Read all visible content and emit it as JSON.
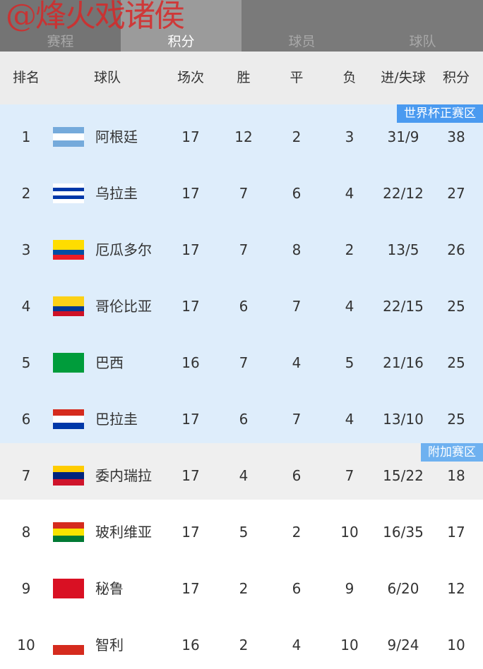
{
  "watermark": "@烽火戏诸侯",
  "tabs": [
    "赛程",
    "积分",
    "球员",
    "球队"
  ],
  "active_tab": "积分",
  "header": {
    "rank": "排名",
    "team": "球队",
    "played": "场次",
    "won": "胜",
    "drawn": "平",
    "lost": "负",
    "goals": "进/失球",
    "points": "积分"
  },
  "zones": {
    "world_cup": "世界杯正赛区",
    "playoff": "附加赛区"
  },
  "zone_colors": {
    "world_cup": "#deedfb",
    "playoff": "#efefef",
    "badge": "#4a9af0"
  },
  "rows": [
    {
      "rank": "1",
      "team": "阿根廷",
      "played": "17",
      "won": "12",
      "drawn": "2",
      "lost": "3",
      "goals": "31/9",
      "points": "38",
      "zone": "wc",
      "flag": [
        "#75aadb",
        "#ffffff",
        "#75aadb"
      ]
    },
    {
      "rank": "2",
      "team": "乌拉圭",
      "played": "17",
      "won": "7",
      "drawn": "6",
      "lost": "4",
      "goals": "22/12",
      "points": "27",
      "zone": "wc",
      "flag": [
        "#ffffff",
        "#0038a8",
        "#ffffff",
        "#0038a8",
        "#ffffff"
      ]
    },
    {
      "rank": "3",
      "team": "厄瓜多尔",
      "played": "17",
      "won": "7",
      "drawn": "8",
      "lost": "2",
      "goals": "13/5",
      "points": "26",
      "zone": "wc",
      "flag": [
        "#ffdd00",
        "#ffdd00",
        "#034ea2",
        "#ed1c24"
      ]
    },
    {
      "rank": "4",
      "team": "哥伦比亚",
      "played": "17",
      "won": "6",
      "drawn": "7",
      "lost": "4",
      "goals": "22/15",
      "points": "25",
      "zone": "wc",
      "flag": [
        "#fcd116",
        "#fcd116",
        "#003893",
        "#ce1126"
      ]
    },
    {
      "rank": "5",
      "team": "巴西",
      "played": "16",
      "won": "7",
      "drawn": "4",
      "lost": "5",
      "goals": "21/16",
      "points": "25",
      "zone": "wc",
      "flag": [
        "#009c3b"
      ]
    },
    {
      "rank": "6",
      "team": "巴拉圭",
      "played": "17",
      "won": "6",
      "drawn": "7",
      "lost": "4",
      "goals": "13/10",
      "points": "25",
      "zone": "wc",
      "flag": [
        "#d52b1e",
        "#ffffff",
        "#0038a8"
      ]
    },
    {
      "rank": "7",
      "team": "委内瑞拉",
      "played": "17",
      "won": "4",
      "drawn": "6",
      "lost": "7",
      "goals": "15/22",
      "points": "18",
      "zone": "po",
      "flag": [
        "#ffcc00",
        "#00247d",
        "#cf142b"
      ]
    },
    {
      "rank": "8",
      "team": "玻利维亚",
      "played": "17",
      "won": "5",
      "drawn": "2",
      "lost": "10",
      "goals": "16/35",
      "points": "17",
      "zone": "",
      "flag": [
        "#d52b1e",
        "#f9e300",
        "#007934"
      ]
    },
    {
      "rank": "9",
      "team": "秘鲁",
      "played": "17",
      "won": "2",
      "drawn": "6",
      "lost": "9",
      "goals": "6/20",
      "points": "12",
      "zone": "",
      "flag": [
        "#d91023"
      ]
    },
    {
      "rank": "10",
      "team": "智利",
      "played": "16",
      "won": "2",
      "drawn": "4",
      "lost": "10",
      "goals": "9/24",
      "points": "10",
      "zone": "",
      "flag": [
        "#ffffff",
        "#d52b1e"
      ]
    }
  ]
}
